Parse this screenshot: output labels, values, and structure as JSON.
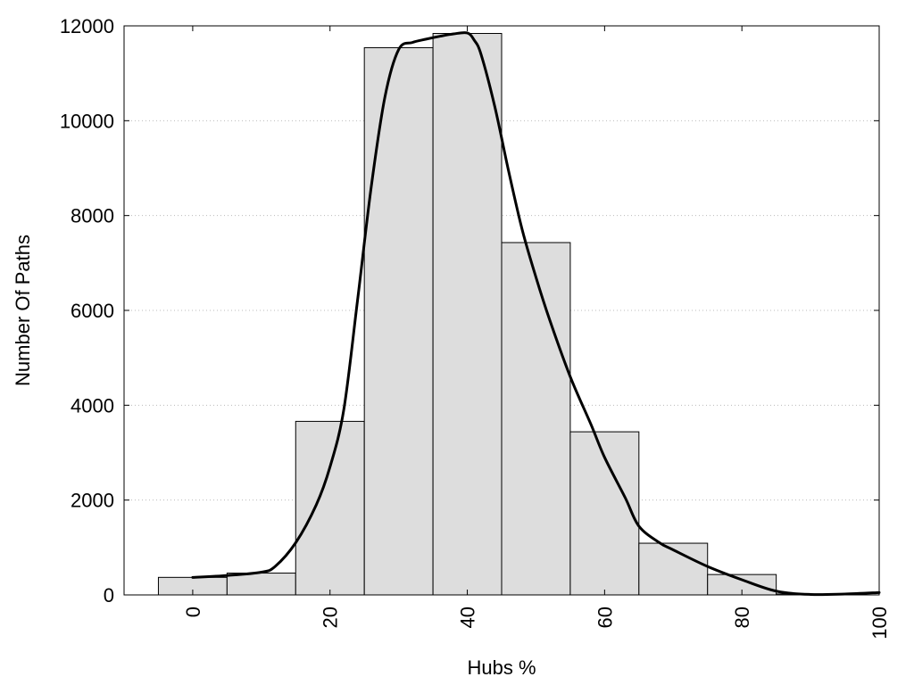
{
  "chart_data": {
    "type": "bar",
    "title": "",
    "xlabel": "Hubs %",
    "ylabel": "Number Of Paths",
    "xlim": [
      -10,
      100
    ],
    "ylim": [
      0,
      12000
    ],
    "x_ticks": [
      0,
      20,
      40,
      60,
      80,
      100
    ],
    "y_ticks": [
      0,
      2000,
      4000,
      6000,
      8000,
      10000,
      12000
    ],
    "grid": "horizontal-dotted",
    "legend": "none",
    "bin_width": 10,
    "categories": [
      0,
      10,
      20,
      30,
      40,
      50,
      60,
      70,
      80,
      90
    ],
    "values": [
      370,
      460,
      3660,
      11540,
      11840,
      7430,
      3440,
      1090,
      430,
      20
    ],
    "curve": {
      "x": [
        0,
        5,
        10,
        12,
        15,
        18,
        20,
        22,
        24,
        26,
        28,
        30,
        32,
        34,
        36,
        38,
        40,
        41,
        42,
        44,
        46,
        48,
        50,
        52,
        55,
        58,
        60,
        63,
        65,
        68,
        70,
        75,
        80,
        85,
        90,
        95,
        100
      ],
      "y": [
        370,
        410,
        480,
        600,
        1100,
        1900,
        2700,
        3900,
        6200,
        8600,
        10500,
        11500,
        11650,
        11720,
        11780,
        11830,
        11850,
        11700,
        11400,
        10300,
        8950,
        7700,
        6700,
        5800,
        4600,
        3600,
        2900,
        2050,
        1450,
        1100,
        950,
        600,
        320,
        80,
        10,
        20,
        50
      ]
    },
    "colors": {
      "bar_fill": "#dddddd",
      "bar_stroke": "#000000",
      "curve": "#000000",
      "grid": "#bbbbbb"
    }
  }
}
